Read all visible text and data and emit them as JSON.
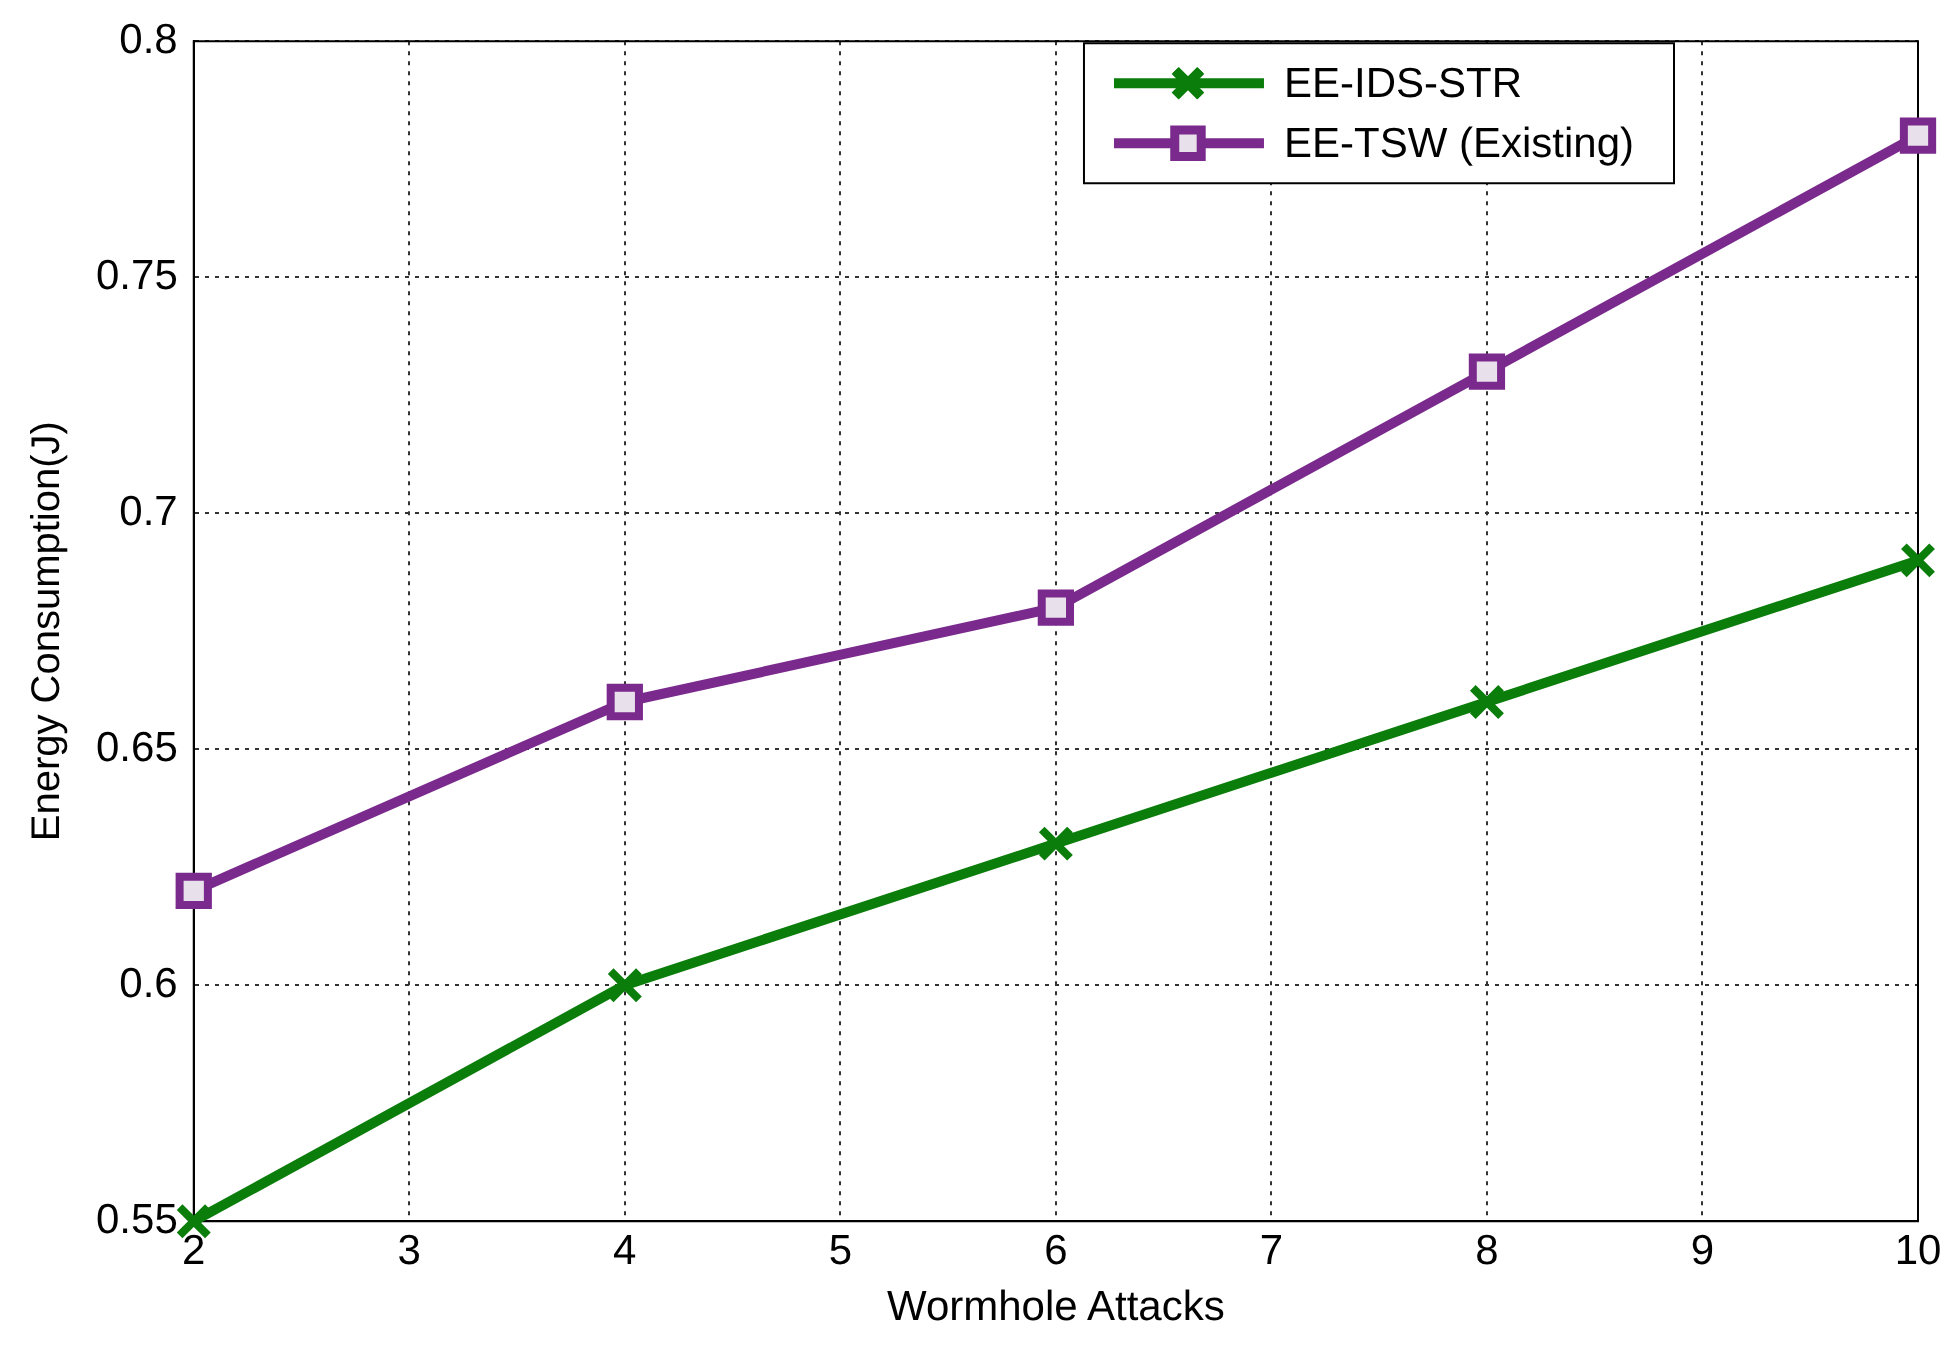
{
  "chart_data": {
    "type": "line",
    "xlabel": "Wormhole Attacks",
    "ylabel": "Energy Consumption(J)",
    "x": [
      2,
      4,
      6,
      8,
      10
    ],
    "series": [
      {
        "name": "EE-IDS-STR",
        "color": "#0a7d0a",
        "values": [
          0.55,
          0.6,
          0.63,
          0.66,
          0.69
        ],
        "marker": "cross"
      },
      {
        "name": "EE-TSW (Existing)",
        "color": "#7a2a8c",
        "values": [
          0.62,
          0.66,
          0.68,
          0.73,
          0.78
        ],
        "marker": "square"
      }
    ],
    "xlim": [
      2,
      10
    ],
    "xticks": [
      2,
      3,
      4,
      5,
      6,
      7,
      8,
      9,
      10
    ],
    "ylim": [
      0.55,
      0.8
    ],
    "yticks": [
      0.55,
      0.6,
      0.65,
      0.7,
      0.75,
      0.8
    ],
    "grid": true,
    "legend": "top right",
    "line_style": "solid"
  }
}
